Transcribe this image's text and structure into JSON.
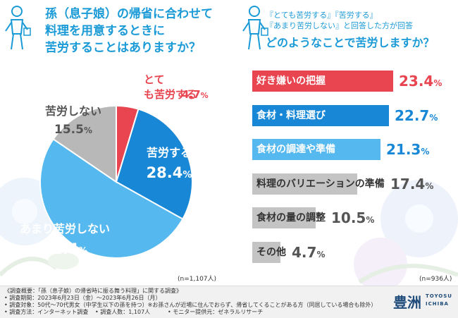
{
  "left": {
    "title_lines": [
      "孫（息子娘）の帰省に合わせて",
      "料理を用意するときに",
      "苦労することはありますか？"
    ],
    "n_note": "(n=1,107人)"
  },
  "right": {
    "subtitle_lines": [
      "『とても苦労する』『苦労する』",
      "『あまり苦労しない』と回答した方が回答"
    ],
    "title": "どのようなことで苦労しますか？",
    "n_note": "(n=936人)"
  },
  "chart_data": [
    {
      "type": "pie",
      "slices": [
        {
          "label": "とても苦労する",
          "value": 4.7,
          "value_text": "4.7%",
          "color": "#e84550"
        },
        {
          "label": "苦労する",
          "value": 28.4,
          "value_text": "28.4%",
          "color": "#1888d6"
        },
        {
          "label": "あまり苦労しない",
          "value": 51.4,
          "value_text": "51.4%",
          "color": "#55b8ef"
        },
        {
          "label": "苦労しない",
          "value": 15.5,
          "value_text": "15.5%",
          "color": "#b8b8b8"
        }
      ]
    },
    {
      "type": "bar",
      "orientation": "horizontal",
      "categories": [
        "好き嫌いの把握",
        "食材・料理選び",
        "食材の調達や準備",
        "料理のバリエーションの準備",
        "食材の量の調整",
        "その他"
      ],
      "values": [
        23.4,
        22.7,
        21.3,
        17.4,
        10.5,
        4.7
      ],
      "value_texts": [
        "23.4%",
        "22.7%",
        "21.3%",
        "17.4%",
        "10.5%",
        "4.7%"
      ],
      "colors": [
        "#e84550",
        "#1888d6",
        "#55b8ef",
        "#c4c4c4",
        "#c4c4c4",
        "#c4c4c4"
      ]
    }
  ],
  "footer": {
    "notes": [
      "《調査概要：「孫（息子娘）の帰省時に振る舞う料理」に関する調査》",
      "• 調査期間：2023年6月23日（金）～2023年6月26日（月）",
      "• 調査対象：50代～70代男女（中学生以下の孫を持つ）※お孫さんが近場に住んでおらず、帰省してくることがある方（同居している場合も除外）",
      "• 調査方法：インターネット調査"
    ],
    "count_note": "• 調査人数：1,107人",
    "provider_note": "• モニター提供元：ゼネラルリサーチ",
    "logo_kanji": "豊洲",
    "logo_line1": "TOYOSU",
    "logo_line2": "ICHIBA"
  }
}
